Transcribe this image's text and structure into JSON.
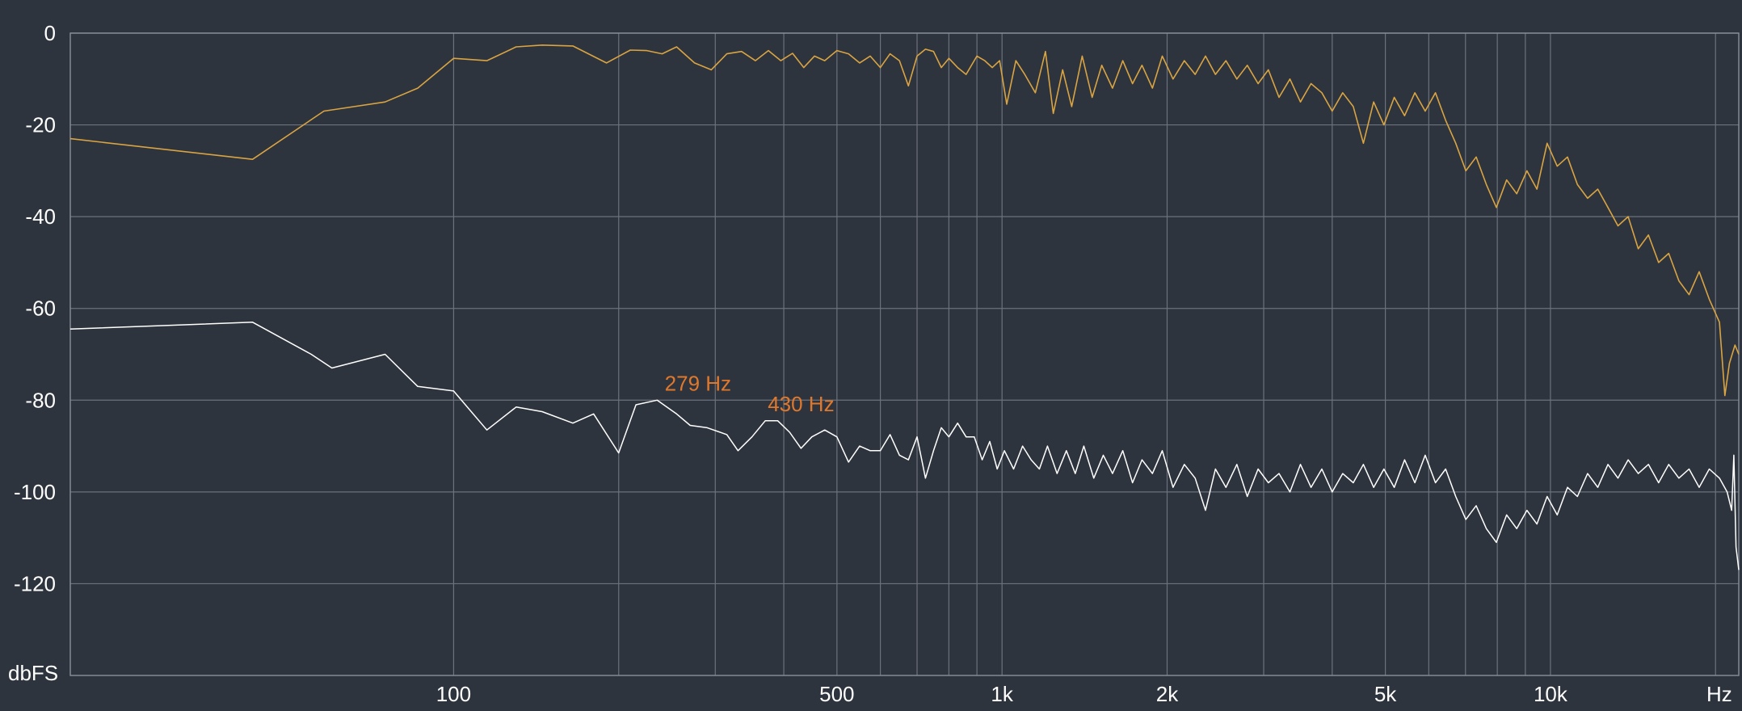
{
  "chart_data": {
    "type": "line",
    "title": "",
    "xlabel": "Hz",
    "ylabel": "dbFS",
    "x_scale": "log",
    "xlim": [
      20,
      22050
    ],
    "ylim": [
      -140,
      0
    ],
    "x_tick_labels": [
      {
        "value": 100,
        "label": "100"
      },
      {
        "value": 500,
        "label": "500"
      },
      {
        "value": 1000,
        "label": "1k"
      },
      {
        "value": 2000,
        "label": "2k"
      },
      {
        "value": 5000,
        "label": "5k"
      },
      {
        "value": 10000,
        "label": "10k"
      }
    ],
    "x_grid": [
      100,
      200,
      300,
      400,
      500,
      600,
      700,
      800,
      900,
      1000,
      2000,
      3000,
      4000,
      5000,
      6000,
      7000,
      8000,
      9000,
      10000,
      20000
    ],
    "y_ticks": [
      0,
      -20,
      -40,
      -60,
      -80,
      -100,
      -120
    ],
    "grid": true,
    "series": [
      {
        "color": "#d9a441",
        "points": [
          [
            20,
            -23
          ],
          [
            43,
            -27.5
          ],
          [
            58,
            -17
          ],
          [
            75,
            -15
          ],
          [
            86,
            -12
          ],
          [
            100,
            -5.5
          ],
          [
            115,
            -6
          ],
          [
            130,
            -3
          ],
          [
            145,
            -2.6
          ],
          [
            165,
            -2.8
          ],
          [
            190,
            -6.5
          ],
          [
            210,
            -3.7
          ],
          [
            225,
            -3.8
          ],
          [
            240,
            -4.5
          ],
          [
            255,
            -3
          ],
          [
            275,
            -6.5
          ],
          [
            295,
            -8
          ],
          [
            315,
            -4.5
          ],
          [
            335,
            -4
          ],
          [
            355,
            -6
          ],
          [
            375,
            -3.8
          ],
          [
            395,
            -6
          ],
          [
            415,
            -4.4
          ],
          [
            435,
            -7.5
          ],
          [
            455,
            -5
          ],
          [
            475,
            -6
          ],
          [
            500,
            -3.8
          ],
          [
            525,
            -4.5
          ],
          [
            550,
            -6.5
          ],
          [
            575,
            -5
          ],
          [
            600,
            -7.5
          ],
          [
            625,
            -4.5
          ],
          [
            650,
            -6
          ],
          [
            675,
            -11.5
          ],
          [
            700,
            -5
          ],
          [
            725,
            -3.5
          ],
          [
            750,
            -4
          ],
          [
            775,
            -7.5
          ],
          [
            800,
            -5.5
          ],
          [
            830,
            -7.5
          ],
          [
            860,
            -9
          ],
          [
            900,
            -5
          ],
          [
            930,
            -6
          ],
          [
            960,
            -7.5
          ],
          [
            990,
            -6
          ],
          [
            1020,
            -15.5
          ],
          [
            1060,
            -6
          ],
          [
            1100,
            -9
          ],
          [
            1150,
            -13
          ],
          [
            1200,
            -4
          ],
          [
            1240,
            -17.5
          ],
          [
            1290,
            -8
          ],
          [
            1340,
            -16
          ],
          [
            1400,
            -5
          ],
          [
            1460,
            -14
          ],
          [
            1520,
            -7
          ],
          [
            1590,
            -12
          ],
          [
            1660,
            -6
          ],
          [
            1730,
            -11
          ],
          [
            1800,
            -7
          ],
          [
            1880,
            -12
          ],
          [
            1960,
            -5
          ],
          [
            2050,
            -10
          ],
          [
            2150,
            -6
          ],
          [
            2250,
            -9
          ],
          [
            2350,
            -5
          ],
          [
            2450,
            -9
          ],
          [
            2560,
            -6
          ],
          [
            2680,
            -10
          ],
          [
            2800,
            -7
          ],
          [
            2930,
            -11
          ],
          [
            3060,
            -8
          ],
          [
            3200,
            -14
          ],
          [
            3350,
            -10
          ],
          [
            3500,
            -15
          ],
          [
            3660,
            -11
          ],
          [
            3830,
            -13
          ],
          [
            4000,
            -17
          ],
          [
            4180,
            -13
          ],
          [
            4370,
            -16
          ],
          [
            4560,
            -24
          ],
          [
            4760,
            -15
          ],
          [
            4970,
            -20
          ],
          [
            5190,
            -14
          ],
          [
            5420,
            -18
          ],
          [
            5660,
            -13
          ],
          [
            5910,
            -17
          ],
          [
            6170,
            -13
          ],
          [
            6440,
            -19
          ],
          [
            6720,
            -24
          ],
          [
            7010,
            -30
          ],
          [
            7320,
            -27
          ],
          [
            7640,
            -33
          ],
          [
            7970,
            -38
          ],
          [
            8320,
            -32
          ],
          [
            8680,
            -35
          ],
          [
            9060,
            -30
          ],
          [
            9450,
            -34
          ],
          [
            9860,
            -24
          ],
          [
            10290,
            -29
          ],
          [
            10740,
            -27
          ],
          [
            11200,
            -33
          ],
          [
            11690,
            -36
          ],
          [
            12200,
            -34
          ],
          [
            12730,
            -38
          ],
          [
            13280,
            -42
          ],
          [
            13860,
            -40
          ],
          [
            14460,
            -47
          ],
          [
            15090,
            -44
          ],
          [
            15750,
            -50
          ],
          [
            16430,
            -48
          ],
          [
            17150,
            -54
          ],
          [
            17900,
            -57
          ],
          [
            18670,
            -52
          ],
          [
            19480,
            -58
          ],
          [
            20330,
            -63
          ],
          [
            20800,
            -79
          ],
          [
            21200,
            -72
          ],
          [
            21700,
            -68
          ],
          [
            22050,
            -70
          ]
        ]
      },
      {
        "color": "#ffffff",
        "points": [
          [
            20,
            -64.5
          ],
          [
            43,
            -63
          ],
          [
            55,
            -70
          ],
          [
            60,
            -73
          ],
          [
            75,
            -70
          ],
          [
            86,
            -77
          ],
          [
            100,
            -78
          ],
          [
            115,
            -86.5
          ],
          [
            130,
            -81.5
          ],
          [
            145,
            -82.5
          ],
          [
            165,
            -85
          ],
          [
            180,
            -83
          ],
          [
            200,
            -91.5
          ],
          [
            215,
            -81
          ],
          [
            235,
            -80
          ],
          [
            255,
            -83
          ],
          [
            270,
            -85.5
          ],
          [
            290,
            -86
          ],
          [
            315,
            -87.5
          ],
          [
            330,
            -91
          ],
          [
            350,
            -88
          ],
          [
            370,
            -84.5
          ],
          [
            390,
            -84.5
          ],
          [
            410,
            -87
          ],
          [
            430,
            -90.5
          ],
          [
            450,
            -88
          ],
          [
            475,
            -86.5
          ],
          [
            500,
            -88
          ],
          [
            525,
            -93.5
          ],
          [
            550,
            -90
          ],
          [
            575,
            -91
          ],
          [
            600,
            -91
          ],
          [
            625,
            -87.5
          ],
          [
            650,
            -92
          ],
          [
            675,
            -93
          ],
          [
            700,
            -88
          ],
          [
            725,
            -97
          ],
          [
            750,
            -91
          ],
          [
            775,
            -86
          ],
          [
            800,
            -88
          ],
          [
            830,
            -85
          ],
          [
            860,
            -88
          ],
          [
            890,
            -88
          ],
          [
            920,
            -93
          ],
          [
            950,
            -89
          ],
          [
            980,
            -95
          ],
          [
            1010,
            -91
          ],
          [
            1050,
            -95
          ],
          [
            1090,
            -90
          ],
          [
            1130,
            -93
          ],
          [
            1170,
            -95
          ],
          [
            1210,
            -90
          ],
          [
            1260,
            -96
          ],
          [
            1310,
            -91
          ],
          [
            1360,
            -96
          ],
          [
            1410,
            -90
          ],
          [
            1470,
            -97
          ],
          [
            1530,
            -92
          ],
          [
            1590,
            -96
          ],
          [
            1660,
            -91
          ],
          [
            1730,
            -98
          ],
          [
            1800,
            -93
          ],
          [
            1880,
            -96
          ],
          [
            1960,
            -91
          ],
          [
            2050,
            -99
          ],
          [
            2150,
            -94
          ],
          [
            2250,
            -97
          ],
          [
            2350,
            -104
          ],
          [
            2450,
            -95
          ],
          [
            2560,
            -99
          ],
          [
            2680,
            -94
          ],
          [
            2800,
            -101
          ],
          [
            2930,
            -95
          ],
          [
            3060,
            -98
          ],
          [
            3200,
            -96
          ],
          [
            3350,
            -100
          ],
          [
            3500,
            -94
          ],
          [
            3660,
            -99
          ],
          [
            3830,
            -95
          ],
          [
            4000,
            -100
          ],
          [
            4180,
            -96
          ],
          [
            4370,
            -98
          ],
          [
            4560,
            -94
          ],
          [
            4760,
            -99
          ],
          [
            4970,
            -95
          ],
          [
            5190,
            -99
          ],
          [
            5420,
            -93
          ],
          [
            5660,
            -98
          ],
          [
            5910,
            -92
          ],
          [
            6170,
            -98
          ],
          [
            6440,
            -95
          ],
          [
            6720,
            -101
          ],
          [
            7010,
            -106
          ],
          [
            7320,
            -103
          ],
          [
            7640,
            -108
          ],
          [
            7970,
            -111
          ],
          [
            8320,
            -105
          ],
          [
            8680,
            -108
          ],
          [
            9060,
            -104
          ],
          [
            9450,
            -107
          ],
          [
            9860,
            -101
          ],
          [
            10290,
            -105
          ],
          [
            10740,
            -99
          ],
          [
            11200,
            -101
          ],
          [
            11690,
            -96
          ],
          [
            12200,
            -99
          ],
          [
            12730,
            -94
          ],
          [
            13280,
            -97
          ],
          [
            13860,
            -93
          ],
          [
            14460,
            -96
          ],
          [
            15090,
            -94
          ],
          [
            15750,
            -98
          ],
          [
            16430,
            -94
          ],
          [
            17150,
            -97
          ],
          [
            17900,
            -95
          ],
          [
            18670,
            -99
          ],
          [
            19480,
            -95
          ],
          [
            20330,
            -97
          ],
          [
            21000,
            -100
          ],
          [
            21400,
            -104
          ],
          [
            21600,
            -92
          ],
          [
            21800,
            -112
          ],
          [
            22050,
            -117
          ]
        ]
      }
    ],
    "annotations": [
      {
        "x": 279,
        "y": -80,
        "label": "279 Hz"
      },
      {
        "x": 430,
        "y": -84.5,
        "label": "430 Hz"
      }
    ]
  }
}
